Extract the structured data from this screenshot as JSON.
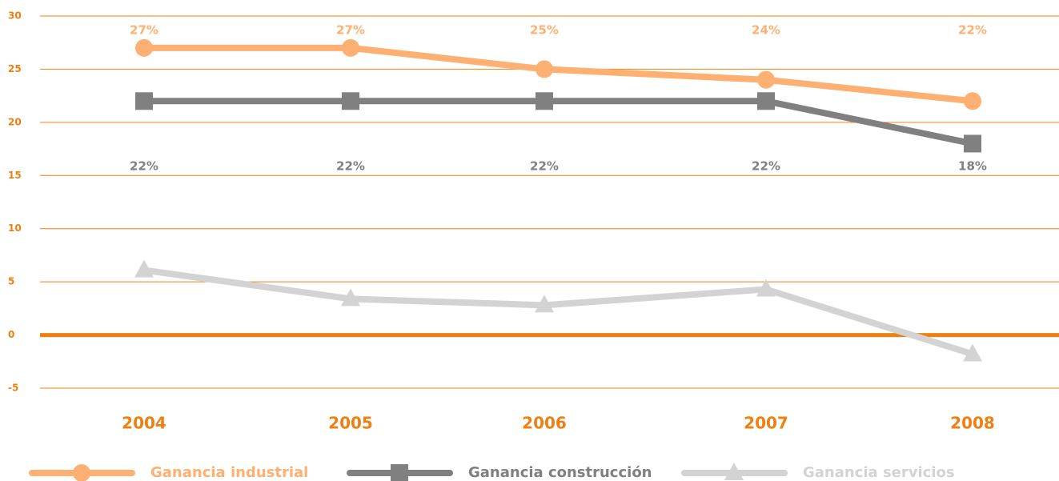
{
  "chart_data": {
    "type": "line",
    "categories": [
      "2004",
      "2005",
      "2006",
      "2007",
      "2008"
    ],
    "series": [
      {
        "name": "Ganancia industrial",
        "color": "#fdb071",
        "marker": "circle",
        "values": [
          27,
          27,
          25,
          24,
          22
        ],
        "value_labels": [
          "27%",
          "27%",
          "25%",
          "24%",
          "22%"
        ]
      },
      {
        "name": "Ganancia construcción",
        "color": "#808080",
        "marker": "square",
        "values": [
          22,
          22,
          22,
          22,
          18
        ],
        "value_labels": [
          "22%",
          "22%",
          "22%",
          "22%",
          "18%"
        ]
      },
      {
        "name": "Ganancia servicios",
        "color": "#d3d3d3",
        "marker": "triangle",
        "values": [
          6.1,
          3.4,
          2.8,
          4.3,
          -1.8
        ]
      }
    ],
    "ylim": [
      -5,
      30
    ],
    "yticks": [
      -5,
      0,
      5,
      10,
      15,
      20,
      25,
      30
    ],
    "grid": true,
    "grid_color": "#f07f12",
    "legend": "bottom"
  }
}
